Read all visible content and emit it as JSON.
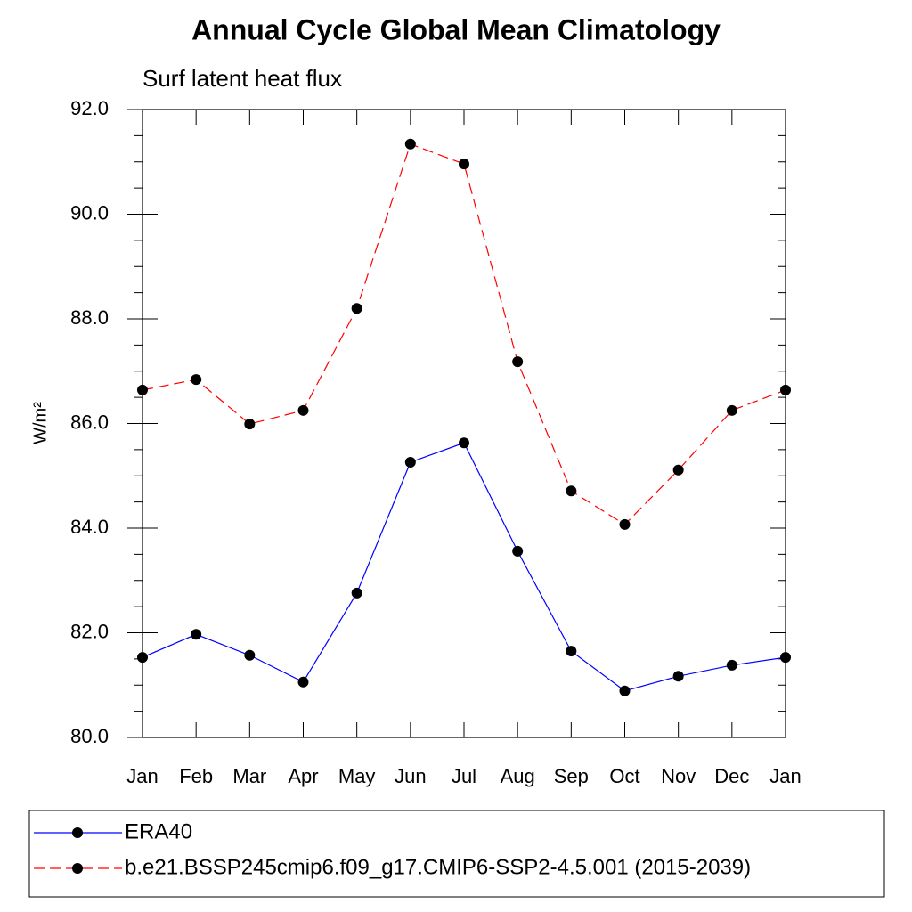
{
  "chart_data": {
    "type": "line",
    "title": "Annual Cycle Global Mean Climatology",
    "subtitle": "Surf latent heat flux",
    "y_label": "W/m²",
    "categories": [
      "Jan",
      "Feb",
      "Mar",
      "Apr",
      "May",
      "Jun",
      "Jul",
      "Aug",
      "Sep",
      "Oct",
      "Nov",
      "Dec",
      "Jan"
    ],
    "series": [
      {
        "name": "ERA40",
        "color": "#0000ff",
        "dash": false,
        "values": [
          81.53,
          81.97,
          81.57,
          81.06,
          82.76,
          85.26,
          85.63,
          83.56,
          81.65,
          80.89,
          81.17,
          81.38,
          81.53
        ]
      },
      {
        "name": "b.e21.BSSP245cmip6.f09_g17.CMIP6-SSP2-4.5.001 (2015-2039)",
        "color": "#ff0000",
        "dash": true,
        "values": [
          86.64,
          86.84,
          85.99,
          86.25,
          88.2,
          91.34,
          90.96,
          87.18,
          84.71,
          84.07,
          85.11,
          86.25,
          86.64
        ]
      }
    ],
    "ylim": [
      80,
      92
    ],
    "yticks": [
      {
        "value": 80,
        "label": "80.0"
      },
      {
        "value": 82,
        "label": "82.0"
      },
      {
        "value": 84,
        "label": "84.0"
      },
      {
        "value": 86,
        "label": "86.0"
      },
      {
        "value": 88,
        "label": "88.0"
      },
      {
        "value": 90,
        "label": "90.0"
      },
      {
        "value": 92,
        "label": "92.0"
      }
    ],
    "yminorticks": [
      80.5,
      81,
      81.5,
      82.5,
      83,
      83.5,
      84.5,
      85,
      85.5,
      86.5,
      87,
      87.5,
      88.5,
      89,
      89.5,
      90.5,
      91,
      91.5
    ],
    "grid": false
  }
}
